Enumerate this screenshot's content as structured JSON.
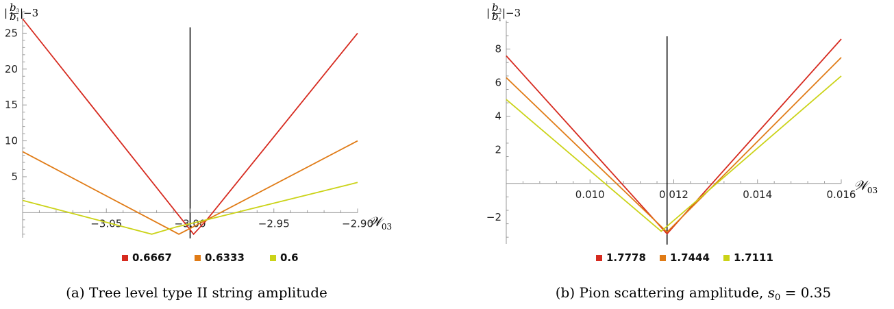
{
  "chart_data": [
    {
      "type": "line",
      "ylabel": "|b3/b1|−3",
      "ylabel_parts": {
        "open": "|",
        "num": "b",
        "num_sub": "3",
        "den": "b",
        "den_sub": "1",
        "close": "|−3"
      },
      "xlabel": "𝒲",
      "xlabel_sub": "03",
      "xlim": [
        -3.1,
        -2.9
      ],
      "ylim": [
        -3.5,
        28
      ],
      "x_origin": -3.0,
      "xticks": [
        -3.05,
        -3.0,
        -2.95,
        -2.9
      ],
      "xtick_labels": [
        "−3.05",
        "−3.00",
        "−2.95",
        "−2.90"
      ],
      "yticks": [
        5,
        10,
        15,
        20,
        25
      ],
      "ytick_labels": [
        "5",
        "10",
        "15",
        "20",
        "25"
      ],
      "caption": "(a) Tree level type II string amplitude",
      "series": [
        {
          "name": "0.6667",
          "color": "#d62a1f",
          "x": [
            -3.1,
            -2.9979,
            -2.99,
            -2.9
          ],
          "y": [
            27.0,
            -3.0,
            -1.0,
            25.0
          ]
        },
        {
          "name": "0.6333",
          "color": "#e07b16",
          "x": [
            -3.1,
            -3.0067,
            -2.99,
            -2.9
          ],
          "y": [
            8.5,
            -3.0,
            -1.0,
            10.0
          ]
        },
        {
          "name": "0.6",
          "color": "#cbd318",
          "x": [
            -3.1,
            -3.0229,
            -3.0083,
            -2.99,
            -2.9
          ],
          "y": [
            1.7,
            -3.0,
            -2.0,
            -1.0,
            4.2
          ]
        }
      ]
    },
    {
      "type": "line",
      "ylabel": "|b3/b1|−3",
      "ylabel_parts": {
        "open": "|",
        "num": "b",
        "num_sub": "3",
        "den": "b",
        "den_sub": "1",
        "close": "|−3"
      },
      "xlabel": "𝒲",
      "xlabel_sub": "03",
      "xlim": [
        0.008,
        0.016
      ],
      "ylim": [
        -3.6,
        9.7
      ],
      "x_origin": 0.01184,
      "xticks": [
        0.01,
        0.012,
        0.014,
        0.016
      ],
      "xtick_labels": [
        "0.010",
        "0.012",
        "0.014",
        "0.016"
      ],
      "yticks": [
        -2,
        2,
        4,
        6,
        8
      ],
      "ytick_labels": [
        "−2",
        "2",
        "4",
        "6",
        "8"
      ],
      "caption": "(b) Pion scattering amplitude, s0 = 0.35",
      "caption_parts": {
        "text": "(b) Pion scattering amplitude, ",
        "var": "s",
        "var_sub": "0",
        "rest": " = 0.35"
      },
      "series": [
        {
          "name": "1.7778",
          "color": "#d62a1f",
          "x": [
            0.008,
            0.01184,
            0.016
          ],
          "y": [
            7.6,
            -3.0,
            8.6
          ]
        },
        {
          "name": "1.7444",
          "color": "#e07b16",
          "x": [
            0.008,
            0.01184,
            0.016
          ],
          "y": [
            6.3,
            -2.9,
            7.5
          ]
        },
        {
          "name": "1.7111",
          "color": "#cbd318",
          "x": [
            0.008,
            0.0117,
            0.016
          ],
          "y": [
            5.0,
            -2.85,
            6.4
          ]
        }
      ]
    }
  ]
}
